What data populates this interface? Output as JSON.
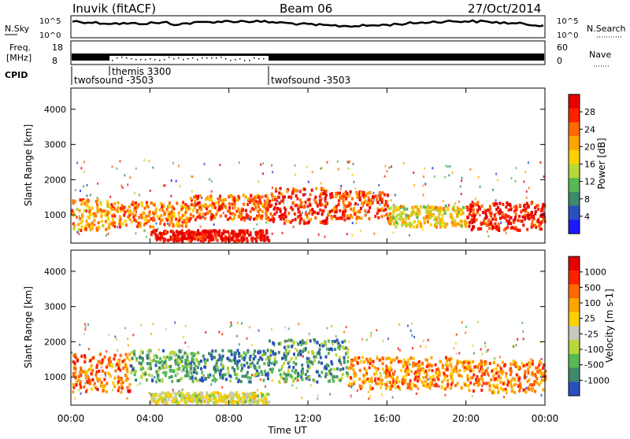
{
  "header": {
    "station": "Inuvik (fitACF)",
    "beam": "Beam 06",
    "date": "27/Oct/2014"
  },
  "top_panel": {
    "left_label": "N.Sky",
    "left_ticks": [
      "10^5",
      "10^0"
    ],
    "right_ticks": [
      "10^5",
      "10^0"
    ],
    "right_label": "N.Search"
  },
  "freq_panel": {
    "left_label_1": "Freq.",
    "left_label_2": "[MHz]",
    "left_ticks": [
      "18",
      "8"
    ],
    "right_ticks": [
      "60",
      "0"
    ],
    "right_label": "Nave"
  },
  "cpid": {
    "label": "CPID",
    "segments": [
      "twofsound -3503",
      "themis 3300",
      "twofsound -3503"
    ]
  },
  "chart_data": [
    {
      "type": "heatmap",
      "title": "Power",
      "ylabel": "Slant Range [km]",
      "ylim": [
        200,
        4600
      ],
      "yticks": [
        "1000",
        "2000",
        "3000",
        "4000"
      ],
      "xlim": [
        0,
        24
      ],
      "colorbar": {
        "label": "Power [dB]",
        "ticks": [
          "28",
          "24",
          "20",
          "16",
          "12",
          "8",
          "4"
        ],
        "colors": [
          "#1a1aff",
          "#2a4fbf",
          "#3d8a6a",
          "#57b857",
          "#b8d838",
          "#ffd000",
          "#ffa500",
          "#ff6a00",
          "#ff2200",
          "#e60000"
        ]
      },
      "bands": [
        {
          "t": [
            0,
            2
          ],
          "r": [
            600,
            1500
          ],
          "level": 0.65
        },
        {
          "t": [
            2,
            6
          ],
          "r": [
            700,
            1400
          ],
          "level": 0.7
        },
        {
          "t": [
            6,
            10
          ],
          "r": [
            900,
            1600
          ],
          "level": 0.75
        },
        {
          "t": [
            10,
            13
          ],
          "r": [
            800,
            1800
          ],
          "level": 0.85
        },
        {
          "t": [
            13,
            16
          ],
          "r": [
            900,
            1700
          ],
          "level": 0.8
        },
        {
          "t": [
            16,
            20
          ],
          "r": [
            700,
            1300
          ],
          "level": 0.55
        },
        {
          "t": [
            20,
            24
          ],
          "r": [
            600,
            1400
          ],
          "level": 0.9
        },
        {
          "t": [
            4,
            10
          ],
          "r": [
            300,
            600
          ],
          "level": 0.95
        }
      ]
    },
    {
      "type": "heatmap",
      "title": "Velocity",
      "ylabel": "Slant Range [km]",
      "ylim": [
        200,
        4600
      ],
      "yticks": [
        "1000",
        "2000",
        "3000",
        "4000"
      ],
      "xlim": [
        0,
        24
      ],
      "xticks": [
        "00:00",
        "04:00",
        "08:00",
        "12:00",
        "16:00",
        "20:00",
        "00:00"
      ],
      "xlabel": "Time UT",
      "colorbar": {
        "label": "Velocity [m s-1]",
        "ticks": [
          "1000",
          "500",
          "100",
          "25",
          "-25",
          "-100",
          "-500",
          "-1000"
        ],
        "colors": [
          "#2a4fbf",
          "#3d8a6a",
          "#57b857",
          "#b8d838",
          "#c8c8c0",
          "#ffd000",
          "#ffa500",
          "#ff6a00",
          "#ff2200",
          "#e60000"
        ]
      },
      "bands": [
        {
          "t": [
            0,
            3
          ],
          "r": [
            600,
            1700
          ],
          "level": 0.75
        },
        {
          "t": [
            3,
            6
          ],
          "r": [
            900,
            1800
          ],
          "level": 0.25
        },
        {
          "t": [
            6,
            10
          ],
          "r": [
            900,
            1800
          ],
          "level": 0.15
        },
        {
          "t": [
            10,
            14
          ],
          "r": [
            900,
            2100
          ],
          "level": 0.2
        },
        {
          "t": [
            14,
            20
          ],
          "r": [
            700,
            1600
          ],
          "level": 0.7
        },
        {
          "t": [
            20,
            24
          ],
          "r": [
            600,
            1500
          ],
          "level": 0.72
        },
        {
          "t": [
            4,
            10
          ],
          "r": [
            300,
            600
          ],
          "level": 0.45
        }
      ]
    }
  ]
}
